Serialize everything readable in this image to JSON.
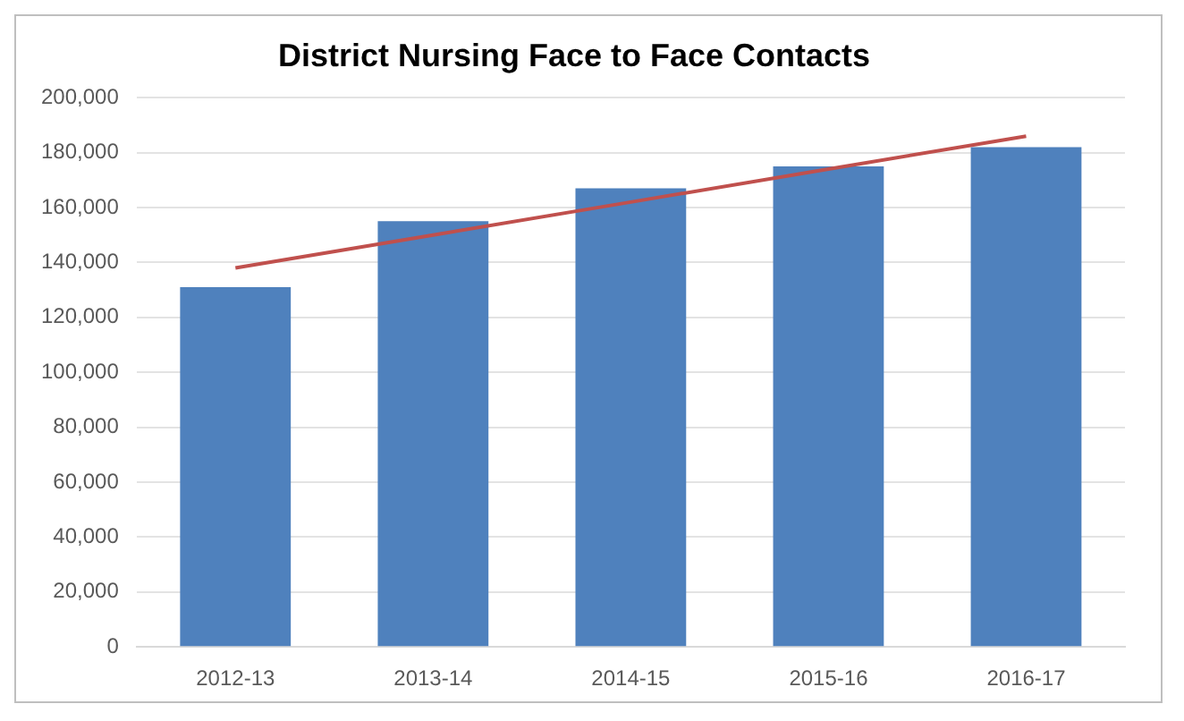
{
  "chart_data": {
    "type": "bar",
    "title": "District Nursing Face to Face Contacts",
    "categories": [
      "2012-13",
      "2013-14",
      "2014-15",
      "2015-16",
      "2016-17"
    ],
    "series": [
      {
        "color": "#4f81bd",
        "values": [
          131000,
          155000,
          167000,
          175000,
          182000
        ]
      },
      {
        "type": "line",
        "color": "#c0504d",
        "x": [
          "2012-13",
          "2013-14",
          "2014-15",
          "2015-16",
          "2016-17"
        ],
        "values": [
          138000,
          150000,
          162000,
          174000,
          186000
        ]
      }
    ],
    "ylim": [
      0,
      200000
    ],
    "yticks": [
      0,
      {
        "value": 20000,
        "label": "20,000"
      },
      {
        "value": 40000,
        "label": "40,000"
      },
      {
        "value": 60000,
        "label": "60,000"
      },
      {
        "value": 80000,
        "label": "80,000"
      },
      {
        "value": 100000,
        "label": "100,000"
      },
      {
        "value": 120000,
        "label": "120,000"
      },
      {
        "value": 140000,
        "label": "140,000"
      },
      {
        "value": 160000,
        "label": "160,000"
      },
      {
        "value": 180000,
        "label": "180,000"
      },
      {
        "value": 200000,
        "label": "200,000"
      }
    ],
    "grid": "y",
    "legend": false,
    "marker": "none"
  }
}
